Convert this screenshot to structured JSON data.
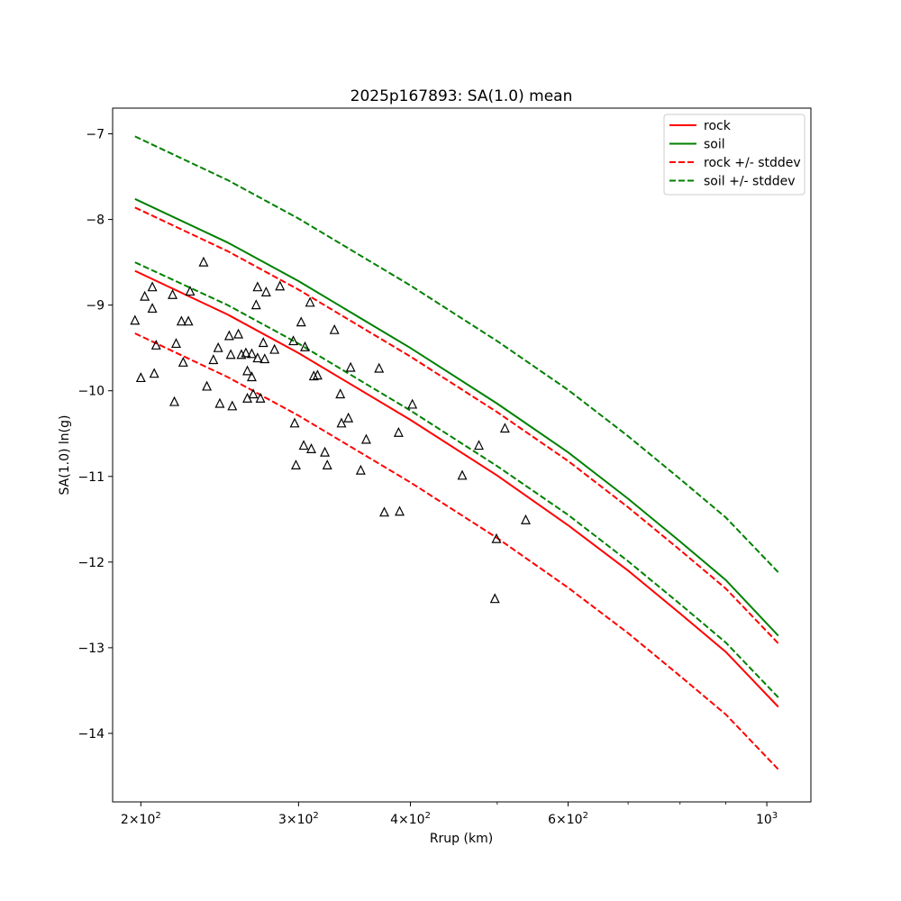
{
  "chart_data": {
    "type": "line",
    "title": "2025p167893: SA(1.0) mean",
    "xlabel": "Rrup (km)",
    "ylabel": "SA(1.0) ln(g)",
    "xscale": "log",
    "xlim": [
      186,
      1120
    ],
    "ylim": [
      -14.8,
      -6.7
    ],
    "x_ticks": [
      {
        "value": 200,
        "label": "2×10",
        "exp": "2"
      },
      {
        "value": 300,
        "label": "3×10",
        "exp": "2"
      },
      {
        "value": 400,
        "label": "4×10",
        "exp": "2"
      },
      {
        "value": 600,
        "label": "6×10",
        "exp": "2"
      },
      {
        "value": 1000,
        "label": "10",
        "exp": "3"
      }
    ],
    "x_minor_ticks": [
      500,
      700,
      800,
      900
    ],
    "y_ticks": [
      {
        "value": -7,
        "label": "−7"
      },
      {
        "value": -8,
        "label": "−8"
      },
      {
        "value": -9,
        "label": "−9"
      },
      {
        "value": -10,
        "label": "−10"
      },
      {
        "value": -11,
        "label": "−11"
      },
      {
        "value": -12,
        "label": "−12"
      },
      {
        "value": -13,
        "label": "−13"
      },
      {
        "value": -14,
        "label": "−14"
      }
    ],
    "grid": false,
    "legend_position": "top-right",
    "series": [
      {
        "name": "rock",
        "color": "#ff0000",
        "dash": "solid",
        "x": [
          197,
          250,
          300,
          400,
          500,
          600,
          700,
          800,
          900,
          1030
        ],
        "y": [
          -8.6,
          -9.11,
          -9.56,
          -10.34,
          -10.99,
          -11.57,
          -12.1,
          -12.6,
          -13.05,
          -13.69
        ]
      },
      {
        "name": "soil",
        "color": "#008000",
        "dash": "solid",
        "x": [
          197,
          250,
          300,
          400,
          500,
          600,
          700,
          800,
          900,
          1030
        ],
        "y": [
          -7.76,
          -8.27,
          -8.72,
          -9.5,
          -10.15,
          -10.72,
          -11.26,
          -11.76,
          -12.21,
          -12.86
        ]
      },
      {
        "name": "rock +/- stddev",
        "color": "#ff0000",
        "dash": "dashed",
        "x": [
          197,
          250,
          300,
          400,
          500,
          600,
          700,
          800,
          900,
          1030
        ],
        "y": [
          -7.86,
          -8.37,
          -8.82,
          -9.6,
          -10.25,
          -10.82,
          -11.36,
          -11.86,
          -12.31,
          -12.95
        ]
      },
      {
        "name": "",
        "color": "#ff0000",
        "dash": "dashed",
        "x": [
          197,
          250,
          300,
          400,
          500,
          600,
          700,
          800,
          900,
          1030
        ],
        "y": [
          -9.33,
          -9.84,
          -10.29,
          -11.07,
          -11.72,
          -12.3,
          -12.83,
          -13.33,
          -13.78,
          -14.42
        ]
      },
      {
        "name": "soil +/- stddev",
        "color": "#008000",
        "dash": "dashed",
        "x": [
          197,
          250,
          300,
          400,
          500,
          600,
          700,
          800,
          900,
          1030
        ],
        "y": [
          -7.03,
          -7.54,
          -7.99,
          -8.77,
          -9.42,
          -9.99,
          -10.53,
          -11.03,
          -11.48,
          -12.12
        ]
      },
      {
        "name": "",
        "color": "#008000",
        "dash": "dashed",
        "x": [
          197,
          250,
          300,
          400,
          500,
          600,
          700,
          800,
          900,
          1030
        ],
        "y": [
          -8.5,
          -9.0,
          -9.45,
          -10.23,
          -10.88,
          -11.45,
          -11.99,
          -12.49,
          -12.94,
          -13.58
        ]
      }
    ],
    "scatter": {
      "marker": "triangle",
      "color": "#000000",
      "points": [
        [
          197,
          -9.18
        ],
        [
          200,
          -9.85
        ],
        [
          202,
          -8.9
        ],
        [
          206,
          -8.79
        ],
        [
          206,
          -9.04
        ],
        [
          207,
          -9.8
        ],
        [
          208,
          -9.47
        ],
        [
          217,
          -8.88
        ],
        [
          218,
          -10.13
        ],
        [
          219,
          -9.45
        ],
        [
          222,
          -9.19
        ],
        [
          223,
          -9.67
        ],
        [
          226,
          -9.19
        ],
        [
          227,
          -8.84
        ],
        [
          235,
          -8.5
        ],
        [
          237,
          -9.95
        ],
        [
          241,
          -9.64
        ],
        [
          244,
          -9.5
        ],
        [
          245,
          -10.15
        ],
        [
          251,
          -9.36
        ],
        [
          252,
          -9.58
        ],
        [
          253,
          -10.18
        ],
        [
          257,
          -9.34
        ],
        [
          259,
          -9.58
        ],
        [
          262,
          -9.56
        ],
        [
          263,
          -9.77
        ],
        [
          263,
          -10.09
        ],
        [
          266,
          -9.57
        ],
        [
          266,
          -9.84
        ],
        [
          267,
          -10.04
        ],
        [
          269,
          -9.0
        ],
        [
          270,
          -8.79
        ],
        [
          270,
          -9.62
        ],
        [
          272,
          -10.09
        ],
        [
          274,
          -9.44
        ],
        [
          275,
          -9.63
        ],
        [
          276,
          -8.85
        ],
        [
          282,
          -9.52
        ],
        [
          286,
          -8.78
        ],
        [
          296,
          -9.42
        ],
        [
          297,
          -10.38
        ],
        [
          298,
          -10.87
        ],
        [
          302,
          -9.2
        ],
        [
          304,
          -10.64
        ],
        [
          305,
          -9.49
        ],
        [
          309,
          -8.97
        ],
        [
          310,
          -10.68
        ],
        [
          312,
          -9.83
        ],
        [
          315,
          -9.82
        ],
        [
          321,
          -10.72
        ],
        [
          323,
          -10.87
        ],
        [
          329,
          -9.29
        ],
        [
          334,
          -10.04
        ],
        [
          335,
          -10.38
        ],
        [
          341,
          -10.32
        ],
        [
          343,
          -9.73
        ],
        [
          352,
          -10.93
        ],
        [
          357,
          -10.57
        ],
        [
          369,
          -9.74
        ],
        [
          374,
          -11.42
        ],
        [
          388,
          -10.49
        ],
        [
          389,
          -11.41
        ],
        [
          402,
          -10.16
        ],
        [
          457,
          -10.99
        ],
        [
          477,
          -10.64
        ],
        [
          497,
          -12.43
        ],
        [
          499,
          -11.73
        ],
        [
          510,
          -10.44
        ],
        [
          538,
          -11.51
        ]
      ]
    }
  }
}
